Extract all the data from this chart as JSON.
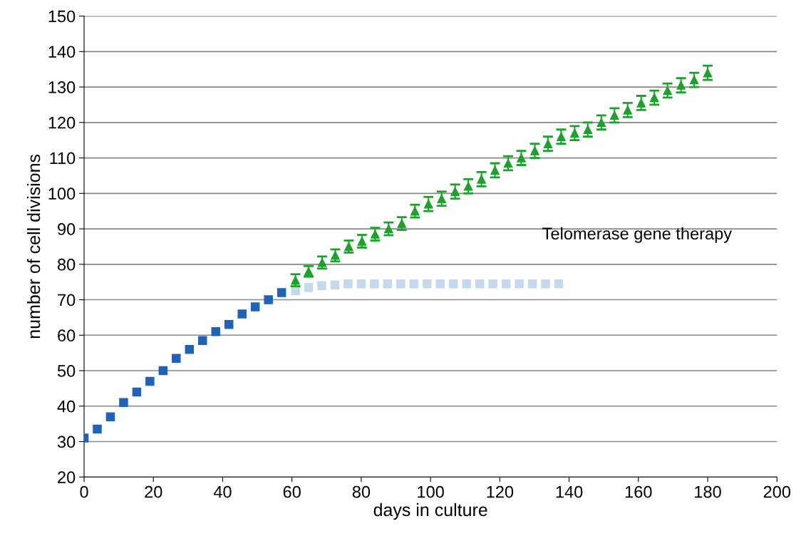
{
  "chart_data": {
    "type": "scatter",
    "xlabel": "days in culture",
    "ylabel": "number of cell divisions",
    "xlim": [
      0,
      200
    ],
    "xticks": [
      0,
      20,
      40,
      60,
      80,
      100,
      120,
      140,
      160,
      180,
      200
    ],
    "ylim": [
      20,
      150
    ],
    "yticks": [
      20,
      30,
      40,
      50,
      60,
      70,
      80,
      90,
      100,
      110,
      120,
      130,
      140,
      150
    ],
    "grid": "y",
    "legend": false,
    "series": [
      {
        "color": "#1f63b8",
        "marker": "square",
        "x": [
          0,
          3.8,
          7.6,
          11.4,
          15.2,
          19,
          22.8,
          26.6,
          30.4,
          34.2,
          38,
          41.8,
          45.6,
          49.4,
          53.2,
          57
        ],
        "values": [
          31,
          33.5,
          37,
          41,
          44,
          47,
          50,
          53.5,
          56,
          58.5,
          61,
          63,
          66,
          68,
          70,
          72
        ]
      },
      {
        "color": "#c5d9ee",
        "marker": "square",
        "x": [
          61,
          64.8,
          68.6,
          72.4,
          76.2,
          80,
          83.8,
          87.6,
          91.4,
          95.2,
          99,
          102.8,
          106.6,
          110.4,
          114.2,
          118,
          121.8,
          125.6,
          129.4,
          133.2,
          137
        ],
        "values": [
          72.5,
          73.5,
          74,
          74.2,
          74.5,
          74.5,
          74.5,
          74.5,
          74.5,
          74.5,
          74.5,
          74.5,
          74.5,
          74.5,
          74.5,
          74.5,
          74.5,
          74.5,
          74.5,
          74.5,
          74.5
        ]
      },
      {
        "name": "Telomerase gene therapy",
        "color": "#1aa32a",
        "marker": "triangle",
        "x": [
          61,
          64.8,
          68.7,
          72.5,
          76.4,
          80.2,
          84,
          87.9,
          91.7,
          95.5,
          99.4,
          103.2,
          107.1,
          110.9,
          114.7,
          118.6,
          122.4,
          126.2,
          130.1,
          133.9,
          137.7,
          141.6,
          145.4,
          149.3,
          153.1,
          156.9,
          160.8,
          164.6,
          168.4,
          172.3,
          176.1,
          180
        ],
        "values": [
          75.5,
          78,
          80.5,
          82.5,
          85,
          86.5,
          88.5,
          90,
          91.5,
          95,
          97,
          98.5,
          100.5,
          102,
          104,
          106.5,
          108.5,
          110,
          112,
          114,
          116,
          117,
          118,
          120,
          122,
          123.5,
          125.5,
          127,
          129,
          130.5,
          132,
          134
        ],
        "errors": [
          1.7,
          1.5,
          1.7,
          1.7,
          1.7,
          1.8,
          1.8,
          1.8,
          1.8,
          1.8,
          2,
          2,
          2,
          2,
          2,
          2,
          2,
          2,
          2,
          2,
          2,
          2,
          2,
          2,
          2,
          2,
          2,
          2,
          2,
          2,
          2,
          2
        ]
      }
    ]
  }
}
